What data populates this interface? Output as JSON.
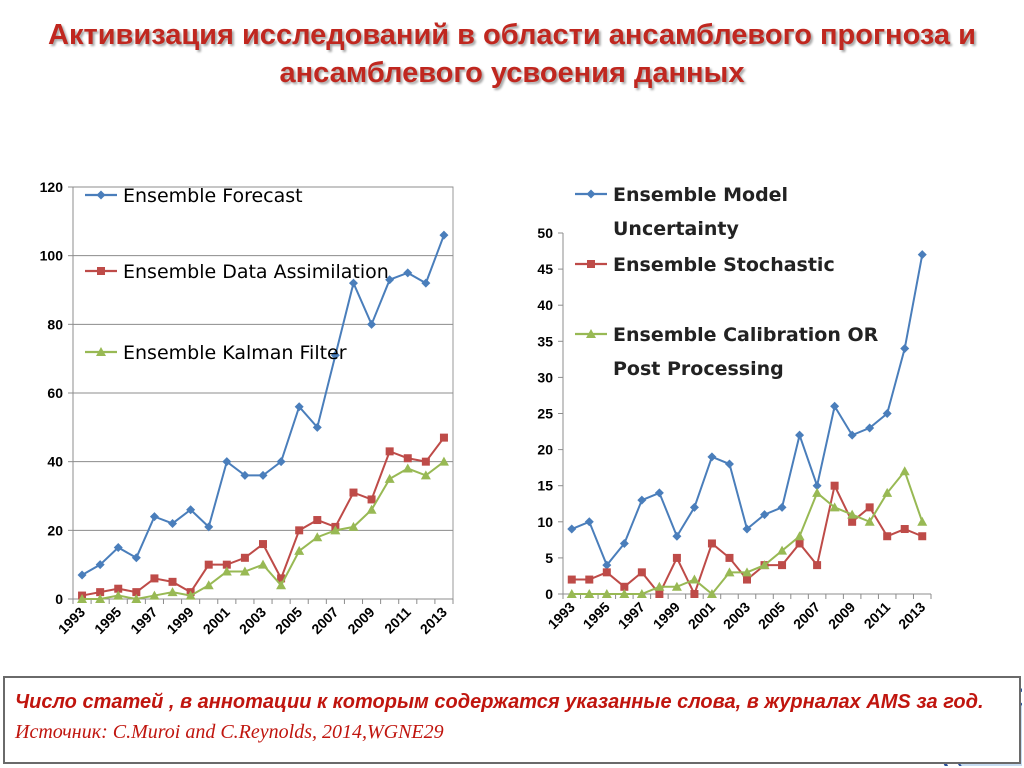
{
  "title": "Активизация исследований в области ансамблевого прогноза и ансамблевого усвоения данных",
  "caption": {
    "text": "Число статей , в аннотации к которым содержатся указанные слова, в журналах AMS за год.",
    "source": "Источник: C.Muroi and C.Reynolds, 2014,WGNE29"
  },
  "chart_data": [
    {
      "type": "line",
      "x": [
        1993,
        1994,
        1995,
        1996,
        1997,
        1998,
        1999,
        2000,
        2001,
        2002,
        2003,
        2004,
        2005,
        2006,
        2007,
        2008,
        2009,
        2010,
        2011,
        2012,
        2013
      ],
      "x_tick_labels": [
        "1993",
        "1995",
        "1997",
        "1999",
        "2001",
        "2003",
        "2005",
        "2007",
        "2009",
        "2011",
        "2013"
      ],
      "y_ticks": [
        0,
        20,
        40,
        60,
        80,
        100,
        120
      ],
      "ylim": [
        0,
        120
      ],
      "grid": "horizontal",
      "legend": "top-left inside",
      "series": [
        {
          "name": "Ensemble Forecast",
          "color": "#4a7ebb",
          "marker": "diamond",
          "values": [
            7,
            10,
            15,
            12,
            24,
            22,
            26,
            21,
            40,
            36,
            36,
            40,
            56,
            50,
            71,
            92,
            80,
            93,
            95,
            92,
            106
          ]
        },
        {
          "name": "Ensemble Data Assimilation",
          "color": "#be4b48",
          "marker": "square",
          "values": [
            1,
            2,
            3,
            2,
            6,
            5,
            2,
            10,
            10,
            12,
            16,
            6,
            20,
            23,
            21,
            31,
            29,
            43,
            41,
            40,
            47
          ]
        },
        {
          "name": "Ensemble Kalman Filter",
          "color": "#98b954",
          "marker": "triangle",
          "values": [
            0,
            0,
            1,
            0,
            1,
            2,
            1,
            4,
            8,
            8,
            10,
            4,
            14,
            18,
            20,
            21,
            26,
            35,
            38,
            36,
            40
          ]
        }
      ]
    },
    {
      "type": "line",
      "x": [
        1993,
        1994,
        1995,
        1996,
        1997,
        1998,
        1999,
        2000,
        2001,
        2002,
        2003,
        2004,
        2005,
        2006,
        2007,
        2008,
        2009,
        2010,
        2011,
        2012,
        2013
      ],
      "x_tick_labels": [
        "1993",
        "1995",
        "1997",
        "1999",
        "2001",
        "2003",
        "2005",
        "2007",
        "2009",
        "2011",
        "2013"
      ],
      "y_ticks": [
        0,
        5,
        10,
        15,
        20,
        25,
        30,
        35,
        40,
        45,
        50
      ],
      "ylim": [
        0,
        50
      ],
      "grid": "none",
      "legend": "top-left inside",
      "series": [
        {
          "name": "Ensemble Model Uncertainty",
          "color": "#4a7ebb",
          "marker": "diamond",
          "values": [
            9,
            10,
            4,
            7,
            13,
            14,
            8,
            12,
            19,
            18,
            9,
            11,
            12,
            22,
            15,
            26,
            22,
            23,
            25,
            34,
            47
          ]
        },
        {
          "name": "Ensemble Stochastic",
          "color": "#be4b48",
          "marker": "square",
          "values": [
            2,
            2,
            3,
            1,
            3,
            0,
            5,
            0,
            7,
            5,
            2,
            4,
            4,
            7,
            4,
            15,
            10,
            12,
            8,
            9,
            8
          ]
        },
        {
          "name": "Ensemble Calibration OR Post Processing",
          "color": "#98b954",
          "marker": "triangle",
          "values": [
            0,
            0,
            0,
            0,
            0,
            1,
            1,
            2,
            0,
            3,
            3,
            4,
            6,
            8,
            14,
            12,
            11,
            10,
            14,
            17,
            10
          ]
        }
      ]
    }
  ]
}
